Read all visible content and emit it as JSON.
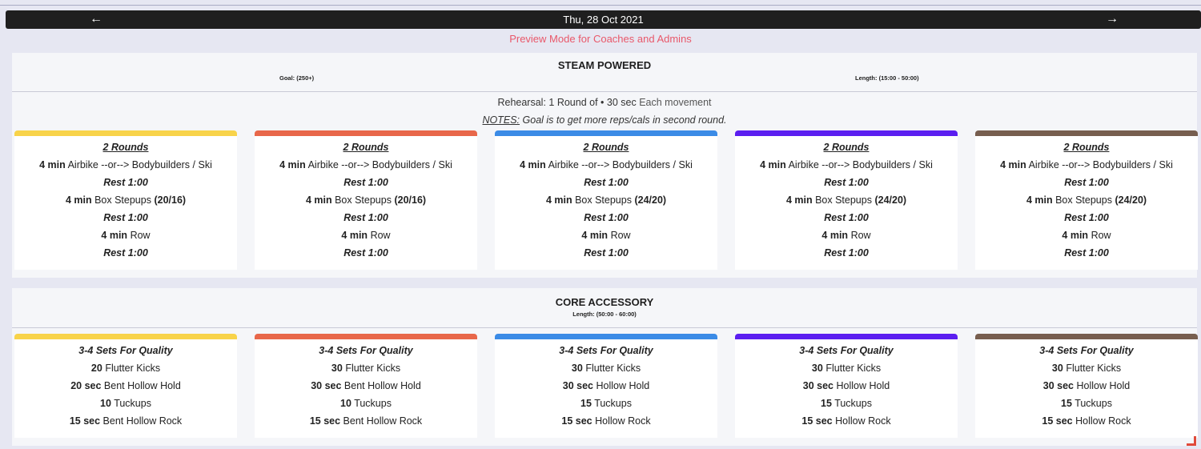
{
  "nav": {
    "date": "Thu, 28 Oct 2021",
    "prev_icon": "←",
    "next_icon": "→",
    "preview_text": "Preview Mode for Coaches and Admins"
  },
  "colors": [
    "#f8d34a",
    "#e8674a",
    "#3b8be6",
    "#5b1ef0",
    "#775e4f"
  ],
  "workout1": {
    "title": "STEAM POWERED",
    "goal": "Goal: (250+)",
    "length": "Length: (15:00 - 50:00)",
    "rehearsal_prefix": "Rehearsal: 1 Round of • 30 sec",
    "rehearsal_suffix": "Each movement",
    "notes_label": "NOTES:",
    "notes_text": "Goal is to get more reps/cals in second round.",
    "cards": [
      {
        "rounds": "2 Rounds",
        "l1_bold": "4 min",
        "l1": "Airbike --or--> Bodybuilders / Ski",
        "rest1": "Rest 1:00",
        "l2_bold": "4 min",
        "l2": "Box Stepups",
        "l2_load": "(20/16)",
        "rest2": "Rest 1:00",
        "l3_bold": "4 min",
        "l3": "Row",
        "rest3": "Rest 1:00"
      },
      {
        "rounds": "2 Rounds",
        "l1_bold": "4 min",
        "l1": "Airbike --or--> Bodybuilders / Ski",
        "rest1": "Rest 1:00",
        "l2_bold": "4 min",
        "l2": "Box Stepups",
        "l2_load": "(20/16)",
        "rest2": "Rest 1:00",
        "l3_bold": "4 min",
        "l3": "Row",
        "rest3": "Rest 1:00"
      },
      {
        "rounds": "2 Rounds",
        "l1_bold": "4 min",
        "l1": "Airbike --or--> Bodybuilders / Ski",
        "rest1": "Rest 1:00",
        "l2_bold": "4 min",
        "l2": "Box Stepups",
        "l2_load": "(24/20)",
        "rest2": "Rest 1:00",
        "l3_bold": "4 min",
        "l3": "Row",
        "rest3": "Rest 1:00"
      },
      {
        "rounds": "2 Rounds",
        "l1_bold": "4 min",
        "l1": "Airbike --or--> Bodybuilders / Ski",
        "rest1": "Rest 1:00",
        "l2_bold": "4 min",
        "l2": "Box Stepups",
        "l2_load": "(24/20)",
        "rest2": "Rest 1:00",
        "l3_bold": "4 min",
        "l3": "Row",
        "rest3": "Rest 1:00"
      },
      {
        "rounds": "2 Rounds",
        "l1_bold": "4 min",
        "l1": "Airbike --or--> Bodybuilders / Ski",
        "rest1": "Rest 1:00",
        "l2_bold": "4 min",
        "l2": "Box Stepups",
        "l2_load": "(24/20)",
        "rest2": "Rest 1:00",
        "l3_bold": "4 min",
        "l3": "Row",
        "rest3": "Rest 1:00"
      }
    ]
  },
  "workout2": {
    "title": "CORE ACCESSORY",
    "length": "Length: (50:00 - 60:00)",
    "cards": [
      {
        "sets": "3-4 Sets For Quality",
        "a_bold": "20",
        "a": "Flutter Kicks",
        "b_bold": "20 sec",
        "b": "Bent Hollow Hold",
        "c_bold": "10",
        "c": "Tuckups",
        "d_bold": "15 sec",
        "d": "Bent Hollow Rock"
      },
      {
        "sets": "3-4 Sets For Quality",
        "a_bold": "30",
        "a": "Flutter Kicks",
        "b_bold": "30 sec",
        "b": "Bent Hollow Hold",
        "c_bold": "10",
        "c": "Tuckups",
        "d_bold": "15 sec",
        "d": "Bent Hollow Rock"
      },
      {
        "sets": "3-4 Sets For Quality",
        "a_bold": "30",
        "a": "Flutter Kicks",
        "b_bold": "30 sec",
        "b": "Hollow Hold",
        "c_bold": "15",
        "c": "Tuckups",
        "d_bold": "15 sec",
        "d": "Hollow Rock"
      },
      {
        "sets": "3-4 Sets For Quality",
        "a_bold": "30",
        "a": "Flutter Kicks",
        "b_bold": "30 sec",
        "b": "Hollow Hold",
        "c_bold": "15",
        "c": "Tuckups",
        "d_bold": "15 sec",
        "d": "Hollow Rock"
      },
      {
        "sets": "3-4 Sets For Quality",
        "a_bold": "30",
        "a": "Flutter Kicks",
        "b_bold": "30 sec",
        "b": "Hollow Hold",
        "c_bold": "15",
        "c": "Tuckups",
        "d_bold": "15 sec",
        "d": "Hollow Rock"
      }
    ]
  }
}
